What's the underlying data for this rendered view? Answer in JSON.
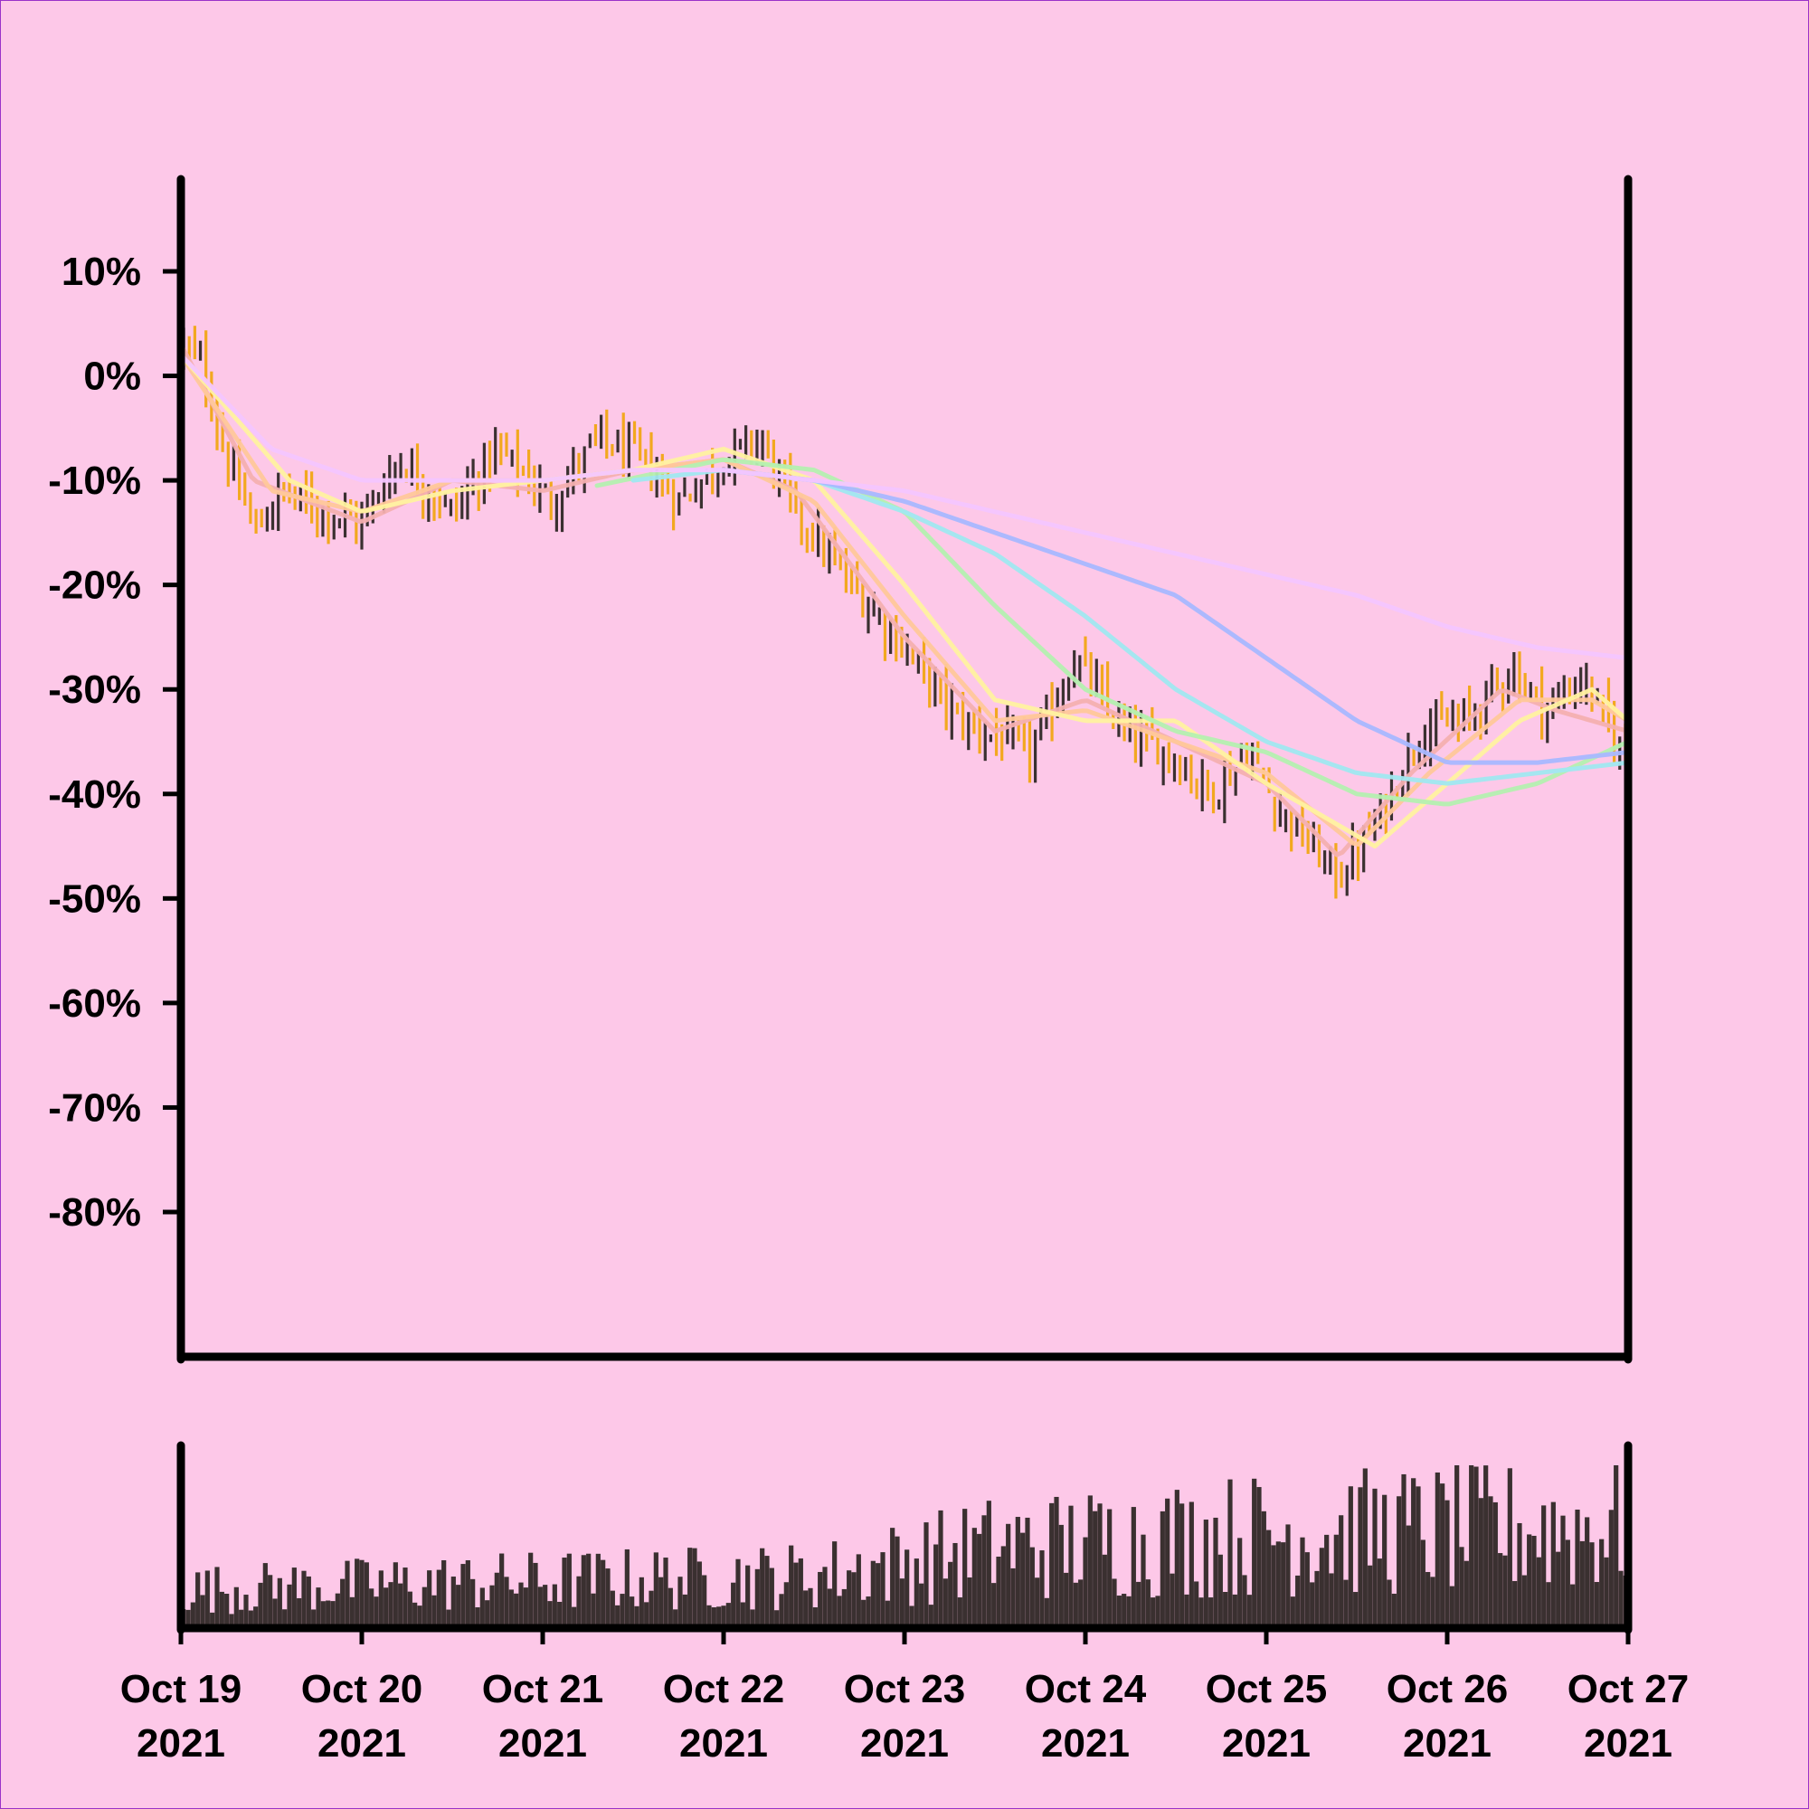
{
  "colors": {
    "background": "#fdc8e8",
    "frame": "#9a32c8",
    "axis": "#000000",
    "bar_up": "#3a3030",
    "bar_down": "#f2a81f",
    "volume": "#3a3030"
  },
  "chart_data": {
    "type": "ohlc",
    "title": "",
    "xlabel": "",
    "ylabel": "",
    "ylim": [
      -80,
      18
    ],
    "y_tick_values": [
      10,
      0,
      -10,
      -20,
      -30,
      -40,
      -50,
      -60,
      -70,
      -80
    ],
    "y_tick_labels": [
      "10%",
      "0%",
      "-10%",
      "-20%",
      "-30%",
      "-40%",
      "-50%",
      "-60%",
      "-70%",
      "-80%"
    ],
    "x_ticks": [
      {
        "line1": "Oct 19",
        "line2": "2021"
      },
      {
        "line1": "Oct 20",
        "line2": "2021"
      },
      {
        "line1": "Oct 21",
        "line2": "2021"
      },
      {
        "line1": "Oct 22",
        "line2": "2021"
      },
      {
        "line1": "Oct 23",
        "line2": "2021"
      },
      {
        "line1": "Oct 24",
        "line2": "2021"
      },
      {
        "line1": "Oct 25",
        "line2": "2021"
      },
      {
        "line1": "Oct 26",
        "line2": "2021"
      },
      {
        "line1": "Oct 27",
        "line2": "2021"
      }
    ],
    "x_range_days": [
      0,
      8
    ],
    "price_path": [
      {
        "day": 0.0,
        "pct": 3
      },
      {
        "day": 0.12,
        "pct": 1
      },
      {
        "day": 0.25,
        "pct": -8
      },
      {
        "day": 0.42,
        "pct": -15
      },
      {
        "day": 0.55,
        "pct": -11
      },
      {
        "day": 0.8,
        "pct": -13
      },
      {
        "day": 1.0,
        "pct": -14
      },
      {
        "day": 1.2,
        "pct": -8
      },
      {
        "day": 1.5,
        "pct": -13
      },
      {
        "day": 1.75,
        "pct": -7
      },
      {
        "day": 2.05,
        "pct": -12
      },
      {
        "day": 2.3,
        "pct": -6
      },
      {
        "day": 2.55,
        "pct": -8
      },
      {
        "day": 2.75,
        "pct": -12
      },
      {
        "day": 3.0,
        "pct": -8
      },
      {
        "day": 3.2,
        "pct": -6
      },
      {
        "day": 3.4,
        "pct": -13
      },
      {
        "day": 3.7,
        "pct": -20
      },
      {
        "day": 4.0,
        "pct": -26
      },
      {
        "day": 4.3,
        "pct": -33
      },
      {
        "day": 4.7,
        "pct": -36
      },
      {
        "day": 4.95,
        "pct": -27
      },
      {
        "day": 5.2,
        "pct": -34
      },
      {
        "day": 5.45,
        "pct": -36
      },
      {
        "day": 5.7,
        "pct": -40
      },
      {
        "day": 5.9,
        "pct": -36
      },
      {
        "day": 6.05,
        "pct": -41
      },
      {
        "day": 6.2,
        "pct": -44
      },
      {
        "day": 6.4,
        "pct": -48
      },
      {
        "day": 6.6,
        "pct": -43
      },
      {
        "day": 6.85,
        "pct": -34
      },
      {
        "day": 7.1,
        "pct": -33
      },
      {
        "day": 7.35,
        "pct": -28
      },
      {
        "day": 7.55,
        "pct": -32
      },
      {
        "day": 7.75,
        "pct": -29
      },
      {
        "day": 8.0,
        "pct": -37
      }
    ],
    "moving_averages": [
      {
        "color": "#f4b0b0",
        "points": [
          {
            "day": 0,
            "pct": 3
          },
          {
            "day": 0.4,
            "pct": -10
          },
          {
            "day": 1,
            "pct": -14
          },
          {
            "day": 1.5,
            "pct": -10
          },
          {
            "day": 2,
            "pct": -11
          },
          {
            "day": 2.5,
            "pct": -9
          },
          {
            "day": 3,
            "pct": -8
          },
          {
            "day": 3.4,
            "pct": -11
          },
          {
            "day": 4,
            "pct": -25
          },
          {
            "day": 4.5,
            "pct": -34
          },
          {
            "day": 5,
            "pct": -31
          },
          {
            "day": 5.5,
            "pct": -35
          },
          {
            "day": 6,
            "pct": -39
          },
          {
            "day": 6.4,
            "pct": -46
          },
          {
            "day": 6.8,
            "pct": -38
          },
          {
            "day": 7.3,
            "pct": -30
          },
          {
            "day": 7.6,
            "pct": -32
          },
          {
            "day": 8,
            "pct": -34
          }
        ]
      },
      {
        "color": "#ffc89a",
        "points": [
          {
            "day": 0,
            "pct": 2
          },
          {
            "day": 0.5,
            "pct": -11
          },
          {
            "day": 1,
            "pct": -13
          },
          {
            "day": 1.5,
            "pct": -10
          },
          {
            "day": 2,
            "pct": -10
          },
          {
            "day": 2.5,
            "pct": -9
          },
          {
            "day": 3,
            "pct": -8
          },
          {
            "day": 3.5,
            "pct": -12
          },
          {
            "day": 4,
            "pct": -23
          },
          {
            "day": 4.5,
            "pct": -33
          },
          {
            "day": 5,
            "pct": -32
          },
          {
            "day": 5.5,
            "pct": -35
          },
          {
            "day": 6,
            "pct": -38
          },
          {
            "day": 6.5,
            "pct": -45
          },
          {
            "day": 6.9,
            "pct": -38
          },
          {
            "day": 7.4,
            "pct": -31
          },
          {
            "day": 7.8,
            "pct": -31
          },
          {
            "day": 8,
            "pct": -33
          }
        ]
      },
      {
        "color": "#fff2a0",
        "points": [
          {
            "day": 0,
            "pct": 2
          },
          {
            "day": 0.6,
            "pct": -10
          },
          {
            "day": 1,
            "pct": -13
          },
          {
            "day": 1.5,
            "pct": -11
          },
          {
            "day": 2,
            "pct": -10
          },
          {
            "day": 2.5,
            "pct": -9
          },
          {
            "day": 3,
            "pct": -7
          },
          {
            "day": 3.5,
            "pct": -10
          },
          {
            "day": 4,
            "pct": -20
          },
          {
            "day": 4.5,
            "pct": -31
          },
          {
            "day": 5,
            "pct": -33
          },
          {
            "day": 5.5,
            "pct": -33
          },
          {
            "day": 6,
            "pct": -39
          },
          {
            "day": 6.6,
            "pct": -45
          },
          {
            "day": 7,
            "pct": -39
          },
          {
            "day": 7.4,
            "pct": -33
          },
          {
            "day": 7.8,
            "pct": -30
          },
          {
            "day": 8,
            "pct": -33
          }
        ]
      },
      {
        "color": "#b4f0b0",
        "points": [
          {
            "day": 2.3,
            "pct": -10.5
          },
          {
            "day": 3,
            "pct": -8
          },
          {
            "day": 3.5,
            "pct": -9
          },
          {
            "day": 4,
            "pct": -13
          },
          {
            "day": 4.5,
            "pct": -22
          },
          {
            "day": 5,
            "pct": -30
          },
          {
            "day": 5.5,
            "pct": -34
          },
          {
            "day": 6,
            "pct": -36
          },
          {
            "day": 6.5,
            "pct": -40
          },
          {
            "day": 7,
            "pct": -41
          },
          {
            "day": 7.5,
            "pct": -39
          },
          {
            "day": 8,
            "pct": -35
          }
        ]
      },
      {
        "color": "#a0e8f0",
        "points": [
          {
            "day": 2.5,
            "pct": -10
          },
          {
            "day": 3,
            "pct": -9
          },
          {
            "day": 3.5,
            "pct": -10
          },
          {
            "day": 4,
            "pct": -13
          },
          {
            "day": 4.5,
            "pct": -17
          },
          {
            "day": 5,
            "pct": -23
          },
          {
            "day": 5.5,
            "pct": -30
          },
          {
            "day": 6,
            "pct": -35
          },
          {
            "day": 6.5,
            "pct": -38
          },
          {
            "day": 7,
            "pct": -39
          },
          {
            "day": 7.5,
            "pct": -38
          },
          {
            "day": 8,
            "pct": -37
          }
        ]
      },
      {
        "color": "#a8b8ff",
        "points": [
          {
            "day": 3,
            "pct": -9
          },
          {
            "day": 3.5,
            "pct": -10
          },
          {
            "day": 4,
            "pct": -12
          },
          {
            "day": 4.5,
            "pct": -15
          },
          {
            "day": 5,
            "pct": -18
          },
          {
            "day": 5.5,
            "pct": -21
          },
          {
            "day": 6,
            "pct": -27
          },
          {
            "day": 6.5,
            "pct": -33
          },
          {
            "day": 7,
            "pct": -37
          },
          {
            "day": 7.5,
            "pct": -37
          },
          {
            "day": 8,
            "pct": -36
          }
        ]
      },
      {
        "color": "#f4c6ff",
        "points": [
          {
            "day": 0,
            "pct": 2
          },
          {
            "day": 0.5,
            "pct": -7
          },
          {
            "day": 1,
            "pct": -10
          },
          {
            "day": 1.5,
            "pct": -10
          },
          {
            "day": 2,
            "pct": -10
          },
          {
            "day": 2.5,
            "pct": -9
          },
          {
            "day": 3,
            "pct": -9
          },
          {
            "day": 3.5,
            "pct": -10
          },
          {
            "day": 4,
            "pct": -11
          },
          {
            "day": 4.5,
            "pct": -13
          },
          {
            "day": 5,
            "pct": -15
          },
          {
            "day": 5.5,
            "pct": -17
          },
          {
            "day": 6,
            "pct": -19
          },
          {
            "day": 6.5,
            "pct": -21
          },
          {
            "day": 7,
            "pct": -24
          },
          {
            "day": 7.5,
            "pct": -26
          },
          {
            "day": 8,
            "pct": -27
          }
        ]
      }
    ],
    "volume_profile": [
      {
        "day": 0,
        "level": 0.25
      },
      {
        "day": 1.5,
        "level": 0.3
      },
      {
        "day": 3.5,
        "level": 0.35
      },
      {
        "day": 4.5,
        "level": 0.55
      },
      {
        "day": 6,
        "level": 0.65
      },
      {
        "day": 8,
        "level": 0.7
      }
    ]
  }
}
